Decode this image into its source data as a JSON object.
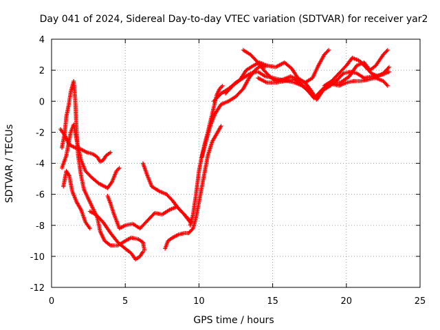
{
  "chart_data": {
    "type": "scatter",
    "title": "Day 041 of 2024, Sidereal Day-to-day VTEC variation (SDTVAR) for receiver yar2",
    "xlabel": "GPS time / hours",
    "ylabel": "SDTVAR / TECUs",
    "xlim": [
      0,
      25
    ],
    "ylim": [
      -12,
      4
    ],
    "xticks": [
      0,
      5,
      10,
      15,
      20,
      25
    ],
    "yticks": [
      -12,
      -10,
      -8,
      -6,
      -4,
      -2,
      0,
      2,
      4
    ],
    "grid": true,
    "legend": "none",
    "marker": "plus",
    "color": "#ff0000",
    "series": [
      {
        "points": [
          [
            0.6,
            -1.8
          ],
          [
            0.9,
            -2.2
          ],
          [
            1.2,
            -2.8
          ],
          [
            1.6,
            -3.0
          ],
          [
            2.0,
            -3.1
          ],
          [
            2.4,
            -3.3
          ],
          [
            2.8,
            -3.4
          ],
          [
            3.1,
            -3.6
          ],
          [
            3.3,
            -3.9
          ],
          [
            3.5,
            -3.8
          ],
          [
            3.7,
            -3.5
          ],
          [
            4.0,
            -3.3
          ]
        ]
      },
      {
        "points": [
          [
            0.7,
            -4.3
          ],
          [
            1.0,
            -3.5
          ],
          [
            1.3,
            -2.0
          ],
          [
            1.5,
            -1.5
          ],
          [
            1.7,
            -2.5
          ],
          [
            2.0,
            -3.8
          ],
          [
            2.3,
            -4.5
          ],
          [
            2.7,
            -4.9
          ],
          [
            3.2,
            -5.3
          ],
          [
            3.8,
            -5.6
          ],
          [
            4.1,
            -5.2
          ],
          [
            4.4,
            -4.5
          ],
          [
            4.6,
            -4.3
          ]
        ]
      },
      {
        "points": [
          [
            0.7,
            -3.0
          ],
          [
            0.9,
            -2.0
          ],
          [
            1.0,
            -1.0
          ],
          [
            1.15,
            -0.3
          ],
          [
            1.3,
            0.6
          ],
          [
            1.5,
            1.3
          ],
          [
            1.6,
            0.2
          ],
          [
            1.7,
            -2.0
          ],
          [
            1.8,
            -3.5
          ],
          [
            2.0,
            -4.8
          ],
          [
            2.2,
            -5.7
          ],
          [
            2.5,
            -6.3
          ],
          [
            2.8,
            -6.9
          ],
          [
            3.1,
            -7.5
          ],
          [
            3.3,
            -8.4
          ],
          [
            3.6,
            -9.0
          ],
          [
            4.0,
            -9.3
          ],
          [
            4.5,
            -9.3
          ],
          [
            5.0,
            -9.0
          ],
          [
            5.4,
            -8.8
          ],
          [
            5.9,
            -8.9
          ],
          [
            6.2,
            -9.1
          ],
          [
            6.3,
            -9.6
          ]
        ]
      },
      {
        "points": [
          [
            0.8,
            -5.5
          ],
          [
            1.0,
            -4.5
          ],
          [
            1.2,
            -4.8
          ],
          [
            1.4,
            -5.8
          ],
          [
            1.7,
            -6.5
          ],
          [
            2.0,
            -7.0
          ],
          [
            2.3,
            -7.8
          ],
          [
            2.6,
            -8.2
          ]
        ]
      },
      {
        "points": [
          [
            2.6,
            -7.1
          ],
          [
            3.0,
            -7.3
          ],
          [
            3.5,
            -7.8
          ],
          [
            4.0,
            -8.5
          ],
          [
            4.5,
            -9.1
          ],
          [
            5.0,
            -9.5
          ],
          [
            5.4,
            -9.8
          ],
          [
            5.7,
            -10.2
          ],
          [
            6.0,
            -10.0
          ],
          [
            6.2,
            -9.7
          ]
        ]
      },
      {
        "points": [
          [
            3.8,
            -6.1
          ],
          [
            4.0,
            -6.6
          ],
          [
            4.2,
            -7.2
          ],
          [
            4.4,
            -7.7
          ],
          [
            4.6,
            -8.2
          ],
          [
            5.0,
            -8.0
          ],
          [
            5.5,
            -7.9
          ],
          [
            6.0,
            -8.2
          ],
          [
            6.5,
            -7.7
          ],
          [
            7.0,
            -7.2
          ],
          [
            7.5,
            -7.3
          ],
          [
            8.0,
            -7.0
          ],
          [
            8.5,
            -6.8
          ],
          [
            9.0,
            -7.3
          ],
          [
            9.5,
            -7.8
          ]
        ]
      },
      {
        "points": [
          [
            6.2,
            -4.0
          ],
          [
            6.5,
            -4.8
          ],
          [
            6.8,
            -5.5
          ],
          [
            7.3,
            -5.8
          ],
          [
            7.8,
            -6.0
          ],
          [
            8.2,
            -6.4
          ],
          [
            8.6,
            -6.9
          ],
          [
            9.0,
            -7.3
          ],
          [
            9.4,
            -7.8
          ]
        ]
      },
      {
        "points": [
          [
            7.7,
            -9.5
          ],
          [
            7.9,
            -9.0
          ],
          [
            8.2,
            -8.8
          ],
          [
            8.6,
            -8.6
          ],
          [
            9.0,
            -8.5
          ],
          [
            9.3,
            -8.5
          ],
          [
            9.6,
            -8.2
          ],
          [
            9.8,
            -7.5
          ],
          [
            10.0,
            -6.5
          ],
          [
            10.2,
            -5.5
          ],
          [
            10.4,
            -4.5
          ],
          [
            10.6,
            -3.5
          ],
          [
            10.9,
            -2.6
          ],
          [
            11.2,
            -2.1
          ],
          [
            11.5,
            -1.6
          ]
        ]
      },
      {
        "points": [
          [
            9.4,
            -8.0
          ],
          [
            9.6,
            -7.3
          ],
          [
            9.8,
            -6.0
          ],
          [
            10.0,
            -4.5
          ],
          [
            10.2,
            -3.5
          ],
          [
            10.4,
            -2.7
          ],
          [
            10.6,
            -2.0
          ],
          [
            10.8,
            -1.2
          ],
          [
            11.0,
            -0.4
          ],
          [
            11.2,
            0.4
          ],
          [
            11.4,
            0.8
          ],
          [
            11.6,
            1.0
          ]
        ]
      },
      {
        "points": [
          [
            10.2,
            -3.6
          ],
          [
            10.5,
            -2.5
          ],
          [
            10.8,
            -1.5
          ],
          [
            11.1,
            -0.8
          ],
          [
            11.5,
            -0.2
          ],
          [
            12.0,
            0.0
          ],
          [
            12.5,
            0.3
          ],
          [
            13.0,
            0.8
          ],
          [
            13.4,
            1.5
          ],
          [
            13.8,
            2.0
          ],
          [
            14.2,
            2.3
          ],
          [
            14.5,
            2.2
          ]
        ]
      },
      {
        "points": [
          [
            11.0,
            0.0
          ],
          [
            11.5,
            0.5
          ],
          [
            12.0,
            0.8
          ],
          [
            12.5,
            1.2
          ],
          [
            13.0,
            1.5
          ],
          [
            13.5,
            1.8
          ],
          [
            14.0,
            1.9
          ],
          [
            14.5,
            1.6
          ],
          [
            15.0,
            1.5
          ],
          [
            15.5,
            1.4
          ],
          [
            16.0,
            1.3
          ],
          [
            16.5,
            1.2
          ],
          [
            17.0,
            1.0
          ],
          [
            17.5,
            0.6
          ],
          [
            18.0,
            0.2
          ],
          [
            18.5,
            0.8
          ],
          [
            19.0,
            1.1
          ],
          [
            19.5,
            1.0
          ],
          [
            20.0,
            1.2
          ],
          [
            20.5,
            1.3
          ],
          [
            21.0,
            1.3
          ],
          [
            21.5,
            1.4
          ],
          [
            22.0,
            1.5
          ],
          [
            22.5,
            1.3
          ],
          [
            22.8,
            1.0
          ]
        ]
      },
      {
        "points": [
          [
            11.8,
            0.5
          ],
          [
            12.3,
            1.0
          ],
          [
            12.8,
            1.4
          ],
          [
            13.2,
            2.0
          ],
          [
            13.7,
            2.3
          ],
          [
            14.1,
            2.5
          ],
          [
            14.6,
            2.3
          ],
          [
            15.2,
            2.2
          ],
          [
            15.8,
            2.5
          ],
          [
            16.3,
            2.1
          ],
          [
            16.7,
            1.5
          ],
          [
            17.2,
            1.2
          ],
          [
            17.6,
            0.7
          ],
          [
            18.0,
            0.1
          ],
          [
            18.4,
            0.7
          ],
          [
            18.9,
            1.0
          ],
          [
            19.4,
            1.4
          ],
          [
            19.8,
            1.8
          ],
          [
            20.3,
            1.9
          ],
          [
            20.7,
            1.8
          ],
          [
            21.2,
            1.5
          ],
          [
            21.8,
            1.6
          ],
          [
            22.4,
            1.7
          ],
          [
            22.9,
            1.9
          ]
        ]
      },
      {
        "points": [
          [
            13.0,
            3.3
          ],
          [
            13.5,
            3.0
          ],
          [
            14.0,
            2.5
          ],
          [
            14.4,
            2.0
          ],
          [
            14.8,
            1.6
          ],
          [
            15.2,
            1.3
          ],
          [
            15.7,
            1.4
          ],
          [
            16.2,
            1.6
          ],
          [
            16.7,
            1.4
          ],
          [
            17.2,
            1.2
          ],
          [
            17.7,
            1.5
          ],
          [
            18.1,
            2.3
          ],
          [
            18.5,
            3.0
          ],
          [
            18.8,
            3.3
          ]
        ]
      },
      {
        "points": [
          [
            14.0,
            1.5
          ],
          [
            14.6,
            1.2
          ],
          [
            15.2,
            1.2
          ],
          [
            15.8,
            1.3
          ],
          [
            16.5,
            1.4
          ],
          [
            17.2,
            0.9
          ],
          [
            17.8,
            0.2
          ],
          [
            18.4,
            0.8
          ],
          [
            19.0,
            1.2
          ],
          [
            19.6,
            1.2
          ],
          [
            20.2,
            1.6
          ],
          [
            20.7,
            2.3
          ],
          [
            21.2,
            2.5
          ],
          [
            21.6,
            2.0
          ],
          [
            22.0,
            2.3
          ],
          [
            22.5,
            3.0
          ],
          [
            22.8,
            3.3
          ]
        ]
      },
      {
        "points": [
          [
            18.5,
            1.0
          ],
          [
            19.0,
            1.3
          ],
          [
            19.5,
            1.8
          ],
          [
            20.0,
            2.3
          ],
          [
            20.4,
            2.8
          ],
          [
            20.9,
            2.6
          ],
          [
            21.3,
            2.2
          ],
          [
            21.7,
            1.8
          ],
          [
            22.1,
            1.6
          ],
          [
            22.5,
            1.8
          ],
          [
            22.9,
            2.2
          ]
        ]
      }
    ]
  }
}
